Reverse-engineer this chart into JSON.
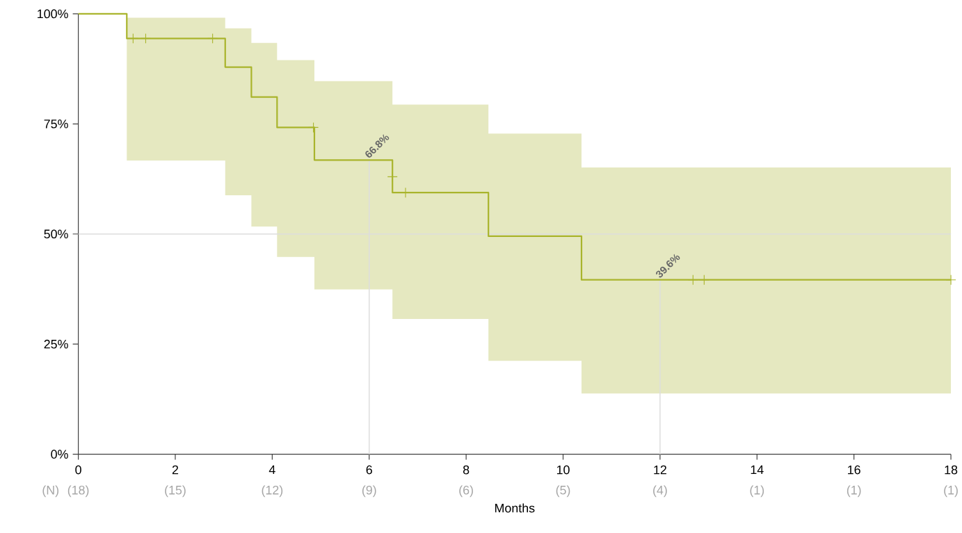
{
  "chart_data": {
    "type": "step",
    "xlabel": "Months",
    "x": [
      0,
      1.0,
      3.03,
      3.57,
      4.1,
      4.87,
      6.48,
      8.46,
      10.38,
      18
    ],
    "series": [
      {
        "color": "#a9b42c",
        "values": [
          100,
          94.4,
          87.9,
          81.1,
          74.2,
          66.8,
          59.4,
          49.5,
          39.6,
          39.6
        ],
        "lower": [
          100,
          66.7,
          58.8,
          51.7,
          44.8,
          37.4,
          30.7,
          21.2,
          13.8,
          13.8
        ],
        "upper": [
          100,
          99.1,
          96.7,
          93.4,
          89.5,
          84.7,
          79.4,
          72.8,
          65.1,
          65.1
        ]
      },
      {
        "type": "scatter",
        "marker": "cross",
        "color": "#a9b42c",
        "x": [
          1.13,
          1.39,
          2.77,
          4.85,
          6.48,
          6.75,
          12.68,
          12.91,
          18
        ],
        "values": [
          94.4,
          94.4,
          94.4,
          74.2,
          63.0,
          59.4,
          39.6,
          39.6,
          39.6
        ]
      }
    ],
    "xlim": [
      0,
      18
    ],
    "ylim": [
      0,
      100
    ],
    "xticks": [
      0,
      2,
      4,
      6,
      8,
      10,
      12,
      14,
      16,
      18
    ],
    "yticks": [
      {
        "value": 0,
        "label": "0%"
      },
      {
        "value": 25,
        "label": "25%"
      },
      {
        "value": 50,
        "label": "50%"
      },
      {
        "value": 75,
        "label": "75%"
      },
      {
        "value": 100,
        "label": "100%"
      }
    ],
    "ref_lines": [
      {
        "axis": "y",
        "value": 50,
        "color": "#dddddd"
      },
      {
        "axis": "x",
        "value": 6,
        "color": "#dddddd"
      },
      {
        "axis": "x",
        "value": 12,
        "color": "#dddddd"
      }
    ],
    "annotations": [
      {
        "text": "66.8%",
        "x": 6,
        "y": 66.8
      },
      {
        "text": "39.6%",
        "x": 12,
        "y": 39.6
      },
      "(N)",
      "(18)",
      "(15)",
      "(12)",
      "(9)",
      "(6)",
      "(5)",
      "(4)",
      "(1)",
      "(1)",
      "(1)"
    ],
    "grid": false
  }
}
